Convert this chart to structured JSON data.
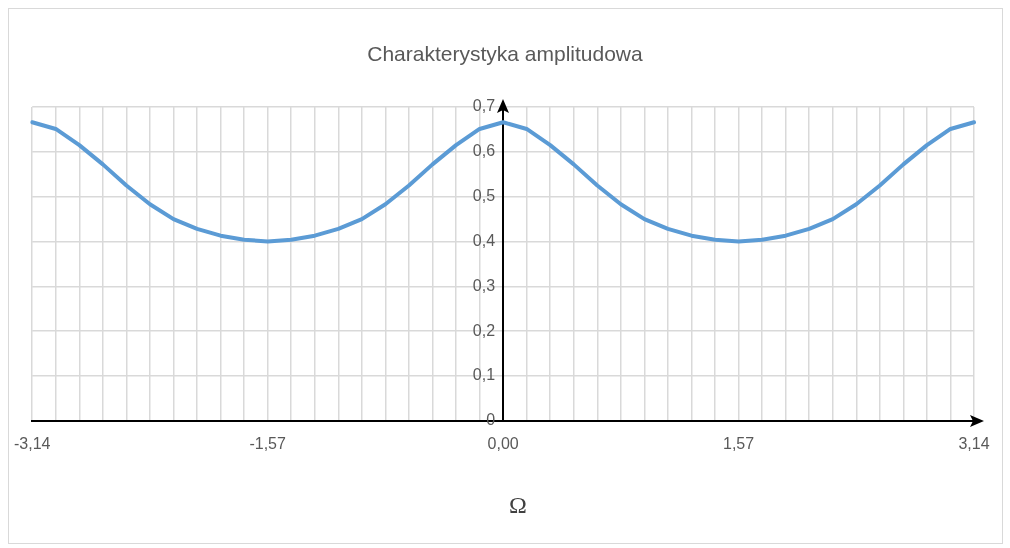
{
  "chart_data": {
    "type": "line",
    "title": "Charakterystyka amplitudowa",
    "xlabel": "Ω",
    "categories": [
      "-3,14",
      null,
      null,
      null,
      null,
      null,
      null,
      null,
      null,
      null,
      "-1,57",
      null,
      null,
      null,
      null,
      null,
      null,
      null,
      null,
      null,
      "0,00",
      null,
      null,
      null,
      null,
      null,
      null,
      null,
      null,
      null,
      "1,57",
      null,
      null,
      null,
      null,
      null,
      null,
      null,
      null,
      null,
      "3,14"
    ],
    "series": [
      {
        "color": "#5b9bd5",
        "values": [
          0.666,
          0.651,
          0.615,
          0.572,
          0.525,
          0.483,
          0.45,
          0.428,
          0.413,
          0.404,
          0.4,
          0.404,
          0.413,
          0.428,
          0.45,
          0.483,
          0.525,
          0.572,
          0.615,
          0.651,
          0.666,
          0.651,
          0.615,
          0.572,
          0.525,
          0.483,
          0.45,
          0.428,
          0.413,
          0.404,
          0.4,
          0.404,
          0.413,
          0.428,
          0.45,
          0.483,
          0.525,
          0.572,
          0.615,
          0.651,
          0.666
        ]
      }
    ],
    "ylim": [
      0,
      0.7
    ],
    "yticks": [
      0,
      {
        "value": 0.1,
        "label": "0,1"
      },
      {
        "value": 0.2,
        "label": "0,2"
      },
      {
        "value": 0.3,
        "label": "0,3"
      },
      {
        "value": 0.4,
        "label": "0,4"
      },
      {
        "value": 0.5,
        "label": "0,5"
      },
      {
        "value": 0.6,
        "label": "0,6"
      },
      {
        "value": 0.7,
        "label": "0,7"
      }
    ],
    "grid": true,
    "marker": "none"
  }
}
